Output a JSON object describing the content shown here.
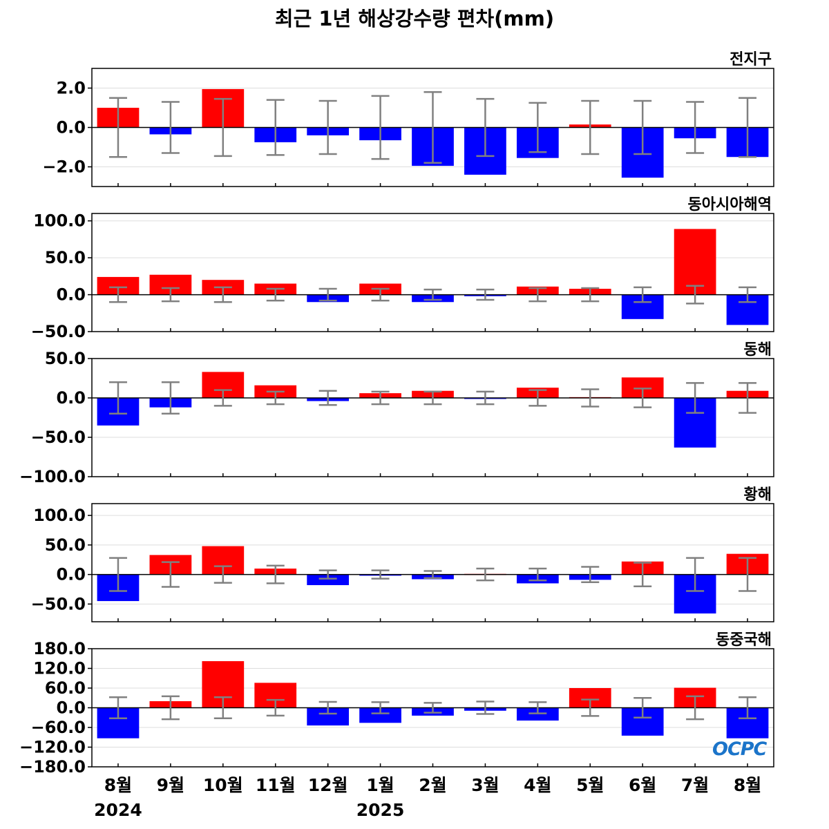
{
  "title": "최근 1년 해상강수량 편차(mm)",
  "logo_text": "OCPC",
  "colors": {
    "positive": "#ff0000",
    "negative": "#0000ff",
    "errorbar": "#808080",
    "zero_line": "#000000",
    "grid": "#dddddd"
  },
  "x_labels": [
    "8월",
    "9월",
    "10월",
    "11월",
    "12월",
    "1월",
    "2월",
    "3월",
    "4월",
    "5월",
    "6월",
    "7월",
    "8월"
  ],
  "year_labels": [
    {
      "index": 0,
      "text": "2024"
    },
    {
      "index": 5,
      "text": "2025"
    }
  ],
  "chart_data": [
    {
      "type": "bar",
      "title": "전지구",
      "categories": [
        "8월",
        "9월",
        "10월",
        "11월",
        "12월",
        "1월",
        "2월",
        "3월",
        "4월",
        "5월",
        "6월",
        "7월",
        "8월"
      ],
      "values": [
        1.0,
        -0.35,
        1.95,
        -0.75,
        -0.4,
        -0.65,
        -1.95,
        -2.4,
        -1.55,
        0.15,
        -2.55,
        -0.55,
        -1.5
      ],
      "error": [
        1.5,
        1.3,
        1.45,
        1.4,
        1.35,
        1.6,
        1.8,
        1.45,
        1.25,
        1.35,
        1.35,
        1.3,
        1.5
      ],
      "ylim": [
        -3.0,
        3.0
      ],
      "yticks": [
        -2.0,
        0.0,
        2.0
      ],
      "tick_labels": [
        "−2.0",
        "0.0",
        "2.0"
      ],
      "grid": true
    },
    {
      "type": "bar",
      "title": "동아시아해역",
      "categories": [
        "8월",
        "9월",
        "10월",
        "11월",
        "12월",
        "1월",
        "2월",
        "3월",
        "4월",
        "5월",
        "6월",
        "7월",
        "8월"
      ],
      "values": [
        24,
        27,
        20,
        15,
        -10,
        15,
        -10,
        -2,
        11,
        8,
        -33,
        89,
        -41
      ],
      "error": [
        10,
        9,
        10,
        8,
        8,
        8,
        7,
        7,
        9,
        9,
        10,
        12,
        10
      ],
      "ylim": [
        -50,
        110
      ],
      "yticks": [
        -50,
        0,
        50,
        100
      ],
      "tick_labels": [
        "−50.0",
        "0.0",
        "50.0",
        "100.0"
      ],
      "grid": true
    },
    {
      "type": "bar",
      "title": "동해",
      "categories": [
        "8월",
        "9월",
        "10월",
        "11월",
        "12월",
        "1월",
        "2월",
        "3월",
        "4월",
        "5월",
        "6월",
        "7월",
        "8월"
      ],
      "values": [
        -35,
        -12,
        33,
        16,
        -4,
        6,
        9,
        -1,
        13,
        1,
        26,
        -63,
        9
      ],
      "error": [
        20,
        20,
        10,
        8,
        9,
        8,
        8,
        8,
        10,
        11,
        12,
        19,
        19
      ],
      "ylim": [
        -100,
        50
      ],
      "yticks": [
        -100,
        -50,
        0,
        50
      ],
      "tick_labels": [
        "−100.0",
        "−50.0",
        "0.0",
        "50.0"
      ],
      "grid": true
    },
    {
      "type": "bar",
      "title": "황해",
      "categories": [
        "8월",
        "9월",
        "10월",
        "11월",
        "12월",
        "1월",
        "2월",
        "3월",
        "4월",
        "5월",
        "6월",
        "7월",
        "8월"
      ],
      "values": [
        -45,
        33,
        48,
        10,
        -18,
        -2,
        -8,
        1,
        -15,
        -9,
        22,
        -66,
        35
      ],
      "error": [
        28,
        21,
        14,
        15,
        7,
        7,
        6,
        10,
        10,
        13,
        20,
        28,
        28
      ],
      "ylim": [
        -80,
        120
      ],
      "yticks": [
        -50,
        0,
        50,
        100
      ],
      "tick_labels": [
        "−50.0",
        "0.0",
        "50.0",
        "100.0"
      ],
      "grid": true
    },
    {
      "type": "bar",
      "title": "동중국해",
      "categories": [
        "8월",
        "9월",
        "10월",
        "11월",
        "12월",
        "1월",
        "2월",
        "3월",
        "4월",
        "5월",
        "6월",
        "7월",
        "8월"
      ],
      "values": [
        -93,
        20,
        142,
        76,
        -54,
        -46,
        -24,
        -9,
        -39,
        60,
        -85,
        61,
        -93
      ],
      "error": [
        32,
        35,
        32,
        24,
        18,
        17,
        15,
        19,
        17,
        25,
        30,
        35,
        32
      ],
      "ylim": [
        -180,
        180
      ],
      "yticks": [
        -180,
        -120,
        -60,
        0,
        60,
        120,
        180
      ],
      "tick_labels": [
        "−180.0",
        "−120.0",
        "−60.0",
        "0.0",
        "60.0",
        "120.0",
        "180.0"
      ],
      "grid": true
    }
  ]
}
